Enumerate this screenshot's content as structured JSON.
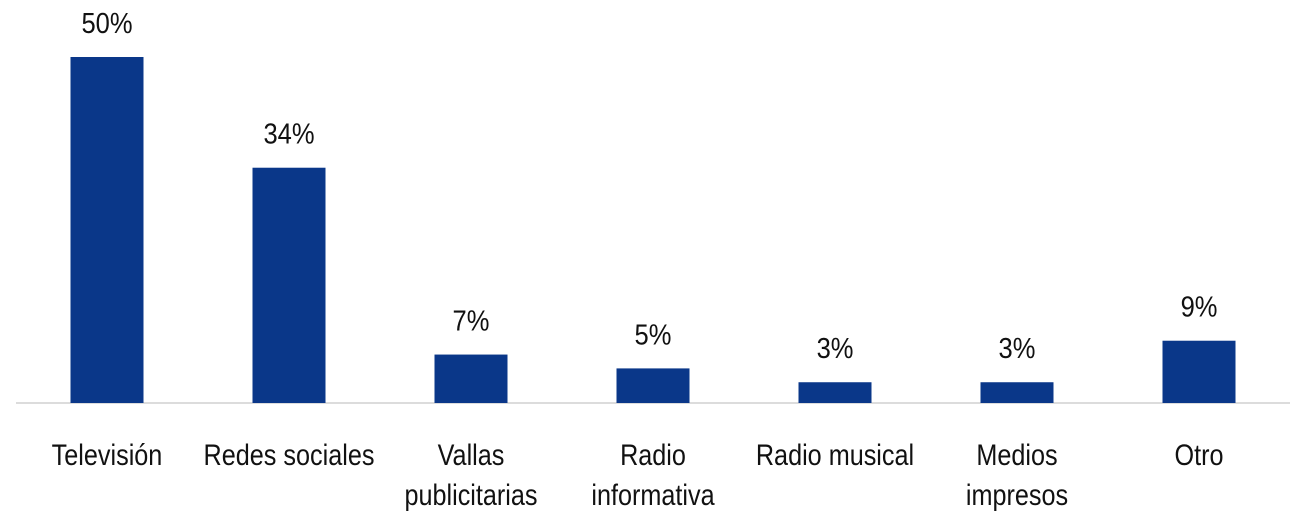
{
  "chart_data": {
    "type": "bar",
    "categories": [
      "Televisión",
      "Redes sociales",
      "Vallas publicitarias",
      "Radio informativa",
      "Radio musical",
      "Medios impresos",
      "Otro"
    ],
    "values": [
      50,
      34,
      7,
      5,
      3,
      3,
      9
    ],
    "value_labels": [
      "50%",
      "34%",
      "7%",
      "5%",
      "3%",
      "3%",
      "9%"
    ],
    "color": "#0a3789"
  }
}
